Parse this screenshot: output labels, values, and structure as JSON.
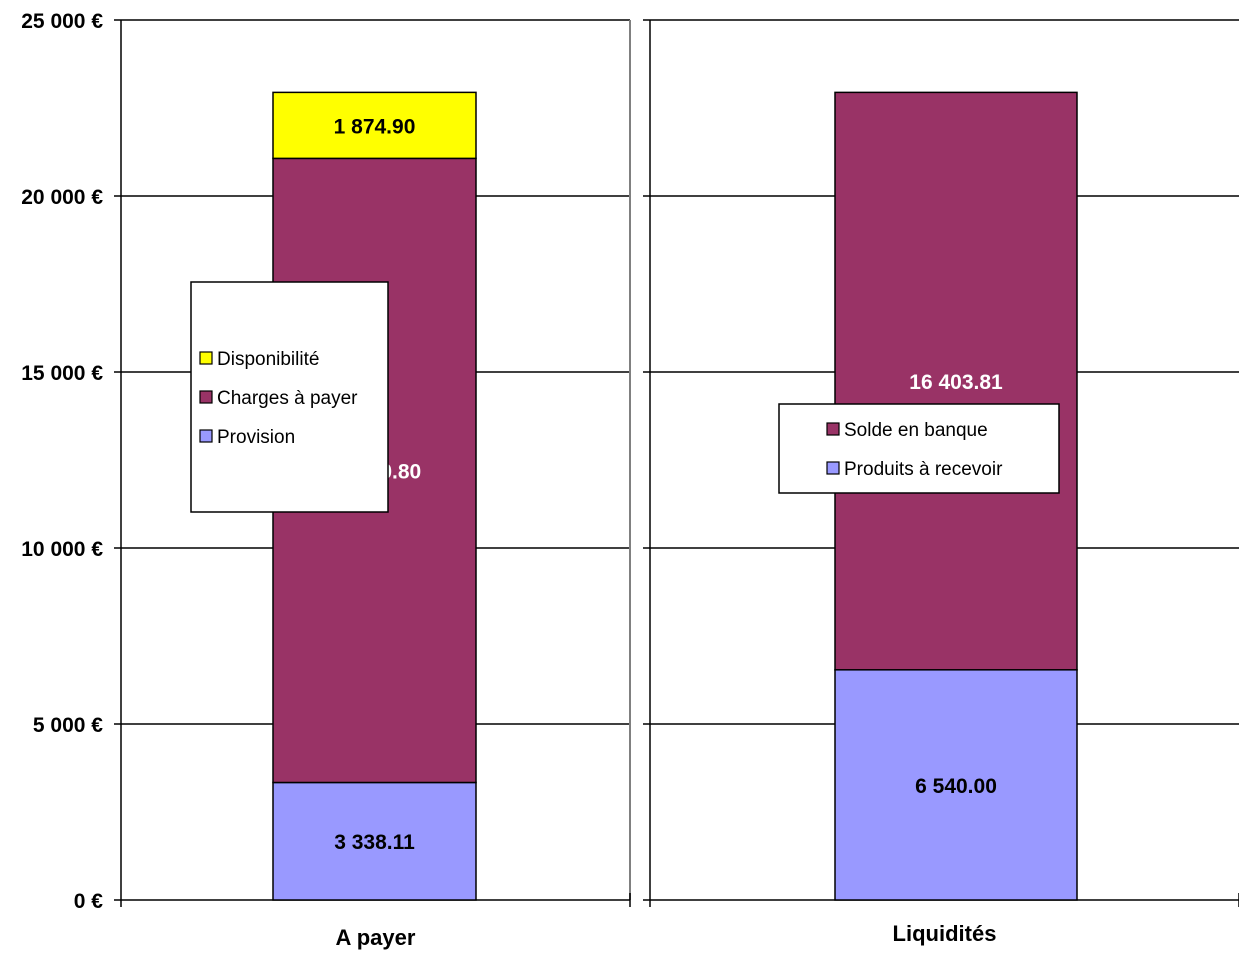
{
  "chart_data": [
    {
      "type": "bar",
      "stacked": true,
      "categories": [
        "A payer"
      ],
      "series": [
        {
          "name": "Provision",
          "values": [
            3338.11
          ],
          "label": "3 338.11",
          "color": "#9999ff",
          "label_color": "#000000"
        },
        {
          "name": "Charges à payer",
          "values": [
            17730.8
          ],
          "label": "17 730.80",
          "color": "#993366",
          "label_color": "#ffffff"
        },
        {
          "name": "Disponibilité",
          "values": [
            1874.9
          ],
          "label": "1 874.90",
          "color": "#ffff00",
          "label_color": "#000000"
        }
      ],
      "ylim": [
        0,
        25000
      ],
      "yticks": [
        0,
        5000,
        10000,
        15000,
        20000,
        25000
      ],
      "ytick_labels": [
        "0 €",
        "5 000 €",
        "10 000 €",
        "15 000 €",
        "20 000 €",
        "25 000 €"
      ],
      "grid": true,
      "legend": {
        "placement": "left",
        "entries": [
          "Disponibilité",
          "Charges à payer",
          "Provision"
        ]
      }
    },
    {
      "type": "bar",
      "stacked": true,
      "categories": [
        "Liquidités"
      ],
      "series": [
        {
          "name": "Produits à recevoir",
          "values": [
            6540.0
          ],
          "label": "6 540.00",
          "color": "#9999ff",
          "label_color": "#000000"
        },
        {
          "name": "Solde en banque",
          "values": [
            16403.81
          ],
          "label": "16 403.81",
          "color": "#993366",
          "label_color": "#ffffff"
        }
      ],
      "ylim": [
        0,
        25000
      ],
      "yticks": [
        0,
        5000,
        10000,
        15000,
        20000,
        25000
      ],
      "grid": true,
      "legend": {
        "placement": "center",
        "entries": [
          "Solde en banque",
          "Produits à recevoir"
        ]
      }
    }
  ]
}
